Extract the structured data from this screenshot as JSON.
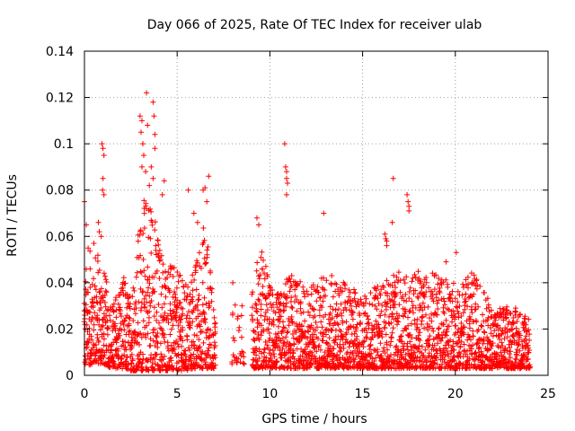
{
  "chart_data": {
    "type": "scatter",
    "title": "Day 066 of 2025, Rate Of TEC Index for receiver ulab",
    "xlabel": "GPS time / hours",
    "ylabel": "ROTI / TECUs",
    "xlim": [
      0,
      25
    ],
    "ylim": [
      0,
      0.14
    ],
    "xticks": [
      "0",
      "5",
      "10",
      "15",
      "20",
      "25"
    ],
    "yticks": [
      "0",
      "0.02",
      "0.04",
      "0.06",
      "0.08",
      "0.1",
      "0.12",
      "0.14"
    ],
    "grid": true,
    "marker": "+",
    "color": "#ff0000",
    "series": [
      {
        "data_envelope": [
          {
            "x": 0.0,
            "y_min": 0.004,
            "y_max": 0.045
          },
          {
            "x": 0.5,
            "y_min": 0.005,
            "y_max": 0.06
          },
          {
            "x": 1.0,
            "y_min": 0.005,
            "y_max": 0.048
          },
          {
            "x": 1.5,
            "y_min": 0.003,
            "y_max": 0.03
          },
          {
            "x": 2.0,
            "y_min": 0.003,
            "y_max": 0.045
          },
          {
            "x": 2.5,
            "y_min": 0.002,
            "y_max": 0.035
          },
          {
            "x": 3.0,
            "y_min": 0.002,
            "y_max": 0.07
          },
          {
            "x": 3.5,
            "y_min": 0.002,
            "y_max": 0.085
          },
          {
            "x": 4.0,
            "y_min": 0.002,
            "y_max": 0.06
          },
          {
            "x": 4.5,
            "y_min": 0.002,
            "y_max": 0.05
          },
          {
            "x": 5.0,
            "y_min": 0.002,
            "y_max": 0.045
          },
          {
            "x": 5.5,
            "y_min": 0.002,
            "y_max": 0.04
          },
          {
            "x": 6.0,
            "y_min": 0.003,
            "y_max": 0.05
          },
          {
            "x": 6.5,
            "y_min": 0.003,
            "y_max": 0.07
          },
          {
            "x": 7.0,
            "y_min": 0.003,
            "y_max": 0.03
          },
          {
            "x": 8.0,
            "y_min": 0.005,
            "y_max": 0.04
          },
          {
            "x": 8.5,
            "y_min": 0.005,
            "y_max": 0.025
          },
          {
            "x": 9.0,
            "y_min": 0.003,
            "y_max": 0.035
          },
          {
            "x": 9.5,
            "y_min": 0.003,
            "y_max": 0.06
          },
          {
            "x": 10.0,
            "y_min": 0.003,
            "y_max": 0.04
          },
          {
            "x": 10.5,
            "y_min": 0.003,
            "y_max": 0.035
          },
          {
            "x": 11.0,
            "y_min": 0.003,
            "y_max": 0.045
          },
          {
            "x": 12.0,
            "y_min": 0.003,
            "y_max": 0.038
          },
          {
            "x": 13.0,
            "y_min": 0.003,
            "y_max": 0.045
          },
          {
            "x": 14.0,
            "y_min": 0.003,
            "y_max": 0.04
          },
          {
            "x": 15.0,
            "y_min": 0.003,
            "y_max": 0.035
          },
          {
            "x": 16.0,
            "y_min": 0.003,
            "y_max": 0.04
          },
          {
            "x": 17.0,
            "y_min": 0.003,
            "y_max": 0.045
          },
          {
            "x": 18.0,
            "y_min": 0.003,
            "y_max": 0.045
          },
          {
            "x": 19.0,
            "y_min": 0.003,
            "y_max": 0.045
          },
          {
            "x": 20.0,
            "y_min": 0.003,
            "y_max": 0.04
          },
          {
            "x": 21.0,
            "y_min": 0.003,
            "y_max": 0.045
          },
          {
            "x": 22.0,
            "y_min": 0.003,
            "y_max": 0.03
          },
          {
            "x": 23.0,
            "y_min": 0.003,
            "y_max": 0.03
          },
          {
            "x": 24.0,
            "y_min": 0.003,
            "y_max": 0.028
          }
        ],
        "outliers": [
          [
            0.0,
            0.075
          ],
          [
            0.1,
            0.065
          ],
          [
            0.2,
            0.055
          ],
          [
            0.95,
            0.1
          ],
          [
            1.0,
            0.098
          ],
          [
            1.05,
            0.095
          ],
          [
            1.0,
            0.085
          ],
          [
            0.98,
            0.08
          ],
          [
            1.05,
            0.078
          ],
          [
            0.75,
            0.066
          ],
          [
            0.8,
            0.062
          ],
          [
            0.9,
            0.06
          ],
          [
            3.0,
            0.112
          ],
          [
            3.05,
            0.105
          ],
          [
            3.1,
            0.11
          ],
          [
            3.15,
            0.1
          ],
          [
            3.2,
            0.095
          ],
          [
            3.1,
            0.09
          ],
          [
            3.35,
            0.122
          ],
          [
            3.4,
            0.108
          ],
          [
            3.7,
            0.118
          ],
          [
            3.75,
            0.112
          ],
          [
            3.8,
            0.104
          ],
          [
            3.8,
            0.098
          ],
          [
            3.6,
            0.09
          ],
          [
            3.7,
            0.085
          ],
          [
            3.3,
            0.088
          ],
          [
            3.5,
            0.082
          ],
          [
            4.3,
            0.084
          ],
          [
            4.2,
            0.078
          ],
          [
            5.6,
            0.08
          ],
          [
            5.9,
            0.07
          ],
          [
            6.1,
            0.066
          ],
          [
            6.4,
            0.08
          ],
          [
            6.5,
            0.081
          ],
          [
            6.7,
            0.086
          ],
          [
            6.6,
            0.075
          ],
          [
            10.8,
            0.1
          ],
          [
            10.85,
            0.09
          ],
          [
            10.9,
            0.088
          ],
          [
            10.9,
            0.085
          ],
          [
            10.95,
            0.083
          ],
          [
            10.9,
            0.078
          ],
          [
            9.3,
            0.068
          ],
          [
            9.4,
            0.065
          ],
          [
            12.9,
            0.07
          ],
          [
            16.2,
            0.061
          ],
          [
            16.25,
            0.059
          ],
          [
            16.3,
            0.058
          ],
          [
            16.3,
            0.056
          ],
          [
            16.6,
            0.066
          ],
          [
            16.65,
            0.085
          ],
          [
            17.4,
            0.078
          ],
          [
            17.45,
            0.075
          ],
          [
            17.5,
            0.073
          ],
          [
            17.5,
            0.071
          ],
          [
            19.5,
            0.049
          ],
          [
            20.05,
            0.053
          ],
          [
            8.0,
            0.04
          ],
          [
            8.5,
            0.03
          ]
        ]
      }
    ]
  }
}
